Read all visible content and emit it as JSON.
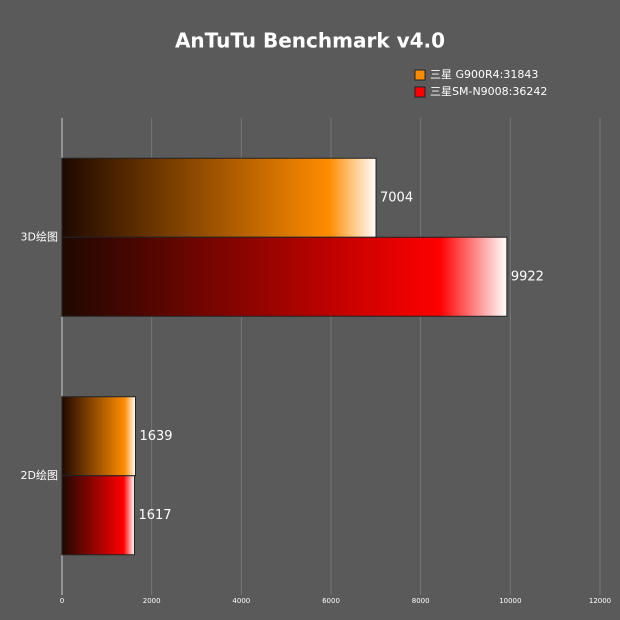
{
  "chart_data": {
    "type": "hbar",
    "title": "AnTuTu Benchmark v4.0",
    "categories": [
      "3D绘图",
      "2D绘图"
    ],
    "series": [
      {
        "name": "三星 G900R4:31843",
        "color": "#ff8c00",
        "values": [
          7004,
          1639
        ]
      },
      {
        "name": "三星SM-N9008:36242",
        "color": "#ff0000",
        "values": [
          9922,
          1617
        ]
      }
    ],
    "xlim": [
      0,
      12000
    ],
    "xticks": [
      0,
      2000,
      4000,
      6000,
      8000,
      10000,
      12000
    ],
    "grid": true,
    "legend": "top-right"
  }
}
